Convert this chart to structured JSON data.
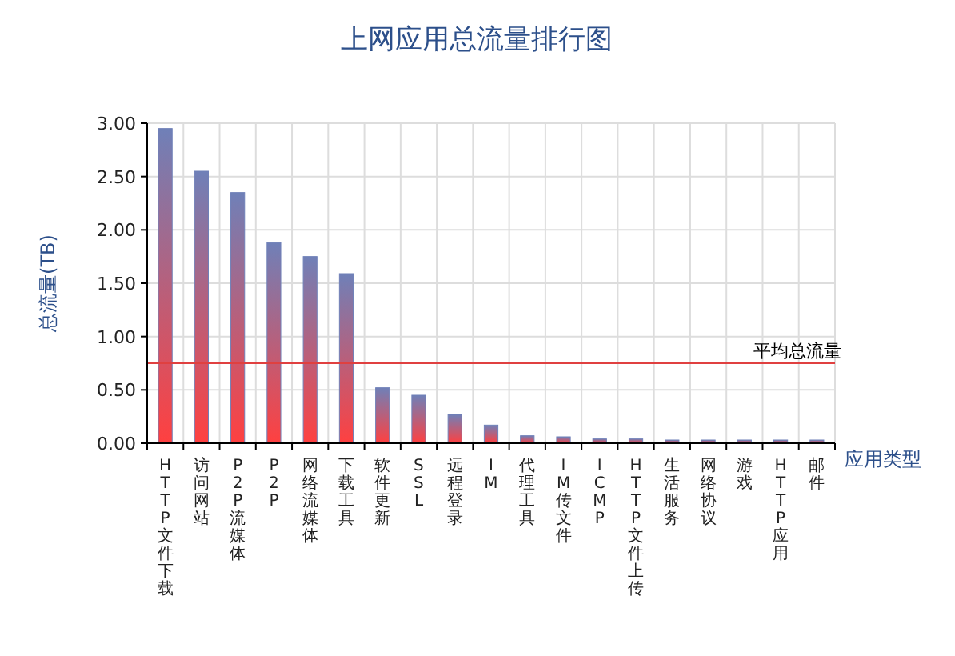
{
  "chart_data": {
    "type": "bar",
    "title": "上网应用总流量排行图",
    "xlabel": "应用类型",
    "ylabel": "总流量(TB)",
    "categories": [
      "HTTP文件下载",
      "访问网站",
      "P2P流媒体",
      "P2P",
      "网络流媒体",
      "下载工具",
      "软件更新",
      "SSL",
      "远程登录",
      "IM",
      "代理工具",
      "IM传文件",
      "ICMP",
      "HTTP文件上传",
      "生活服务",
      "网络协议",
      "游戏",
      "HTTP应用",
      "邮件"
    ],
    "series": [
      {
        "color": "#6f80b8",
        "values": [
          2.95,
          2.55,
          2.35,
          1.88,
          1.75,
          1.59,
          0.52,
          0.45,
          0.27,
          0.17,
          0.07,
          0.06,
          0.04,
          0.04,
          0.03,
          0.03,
          0.03,
          0.03,
          0.03
        ]
      }
    ],
    "ylim": [
      0,
      3
    ],
    "yticks": [
      {
        "value": 0,
        "label": "0.00"
      },
      {
        "value": 0.5,
        "label": "0.50"
      },
      {
        "value": 1,
        "label": "1.00"
      },
      {
        "value": 1.5,
        "label": "1.50"
      },
      {
        "value": 2,
        "label": "2.00"
      },
      {
        "value": 2.5,
        "label": "2.50"
      },
      {
        "value": 3,
        "label": "3.00"
      }
    ],
    "ref_lines": [
      {
        "axis": "y",
        "value": 0.75,
        "label": "平均总流量",
        "color": "#e04040"
      }
    ],
    "grid": true
  }
}
